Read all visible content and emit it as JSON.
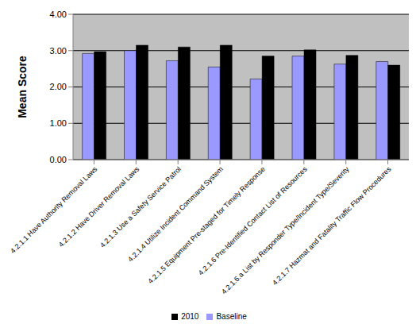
{
  "chart_data": {
    "type": "bar",
    "y_label": "Mean Score",
    "categories": [
      "4.2.1.1 Have Authority Removal Laws",
      "4.2.1.2 Have Driver Removal Laws",
      "4.2.1.3 Use a Safety Service Patrol",
      "4.2.1.4 Utilize Incident Command System",
      "4.2.1.5 Equipment Pre-staged for Timely Response",
      "4.2.1.6 Pre-Identified Contact List of Resources",
      "4.2.1.6.a List by Responder Type/Incident Type/Severity",
      "4.2.1.7 Hazmat and Fatality Traffic Flow Procedures"
    ],
    "series": [
      {
        "name": "Baseline",
        "color": "#9999ff",
        "values": [
          2.92,
          3.0,
          2.72,
          2.55,
          2.22,
          2.85,
          2.63,
          2.7
        ]
      },
      {
        "name": "2010",
        "color": "#000000",
        "values": [
          2.97,
          3.15,
          3.1,
          3.15,
          2.85,
          3.02,
          2.87,
          2.6
        ]
      }
    ],
    "ylim": [
      0,
      4
    ],
    "yticks": [
      {
        "value": 0,
        "label": "0.00"
      },
      {
        "value": 1,
        "label": "1.00"
      },
      {
        "value": 2,
        "label": "2.00"
      },
      {
        "value": 3,
        "label": "3.00"
      },
      {
        "value": 4,
        "label": "4.00"
      }
    ],
    "grid": true,
    "legend": "bottom"
  }
}
